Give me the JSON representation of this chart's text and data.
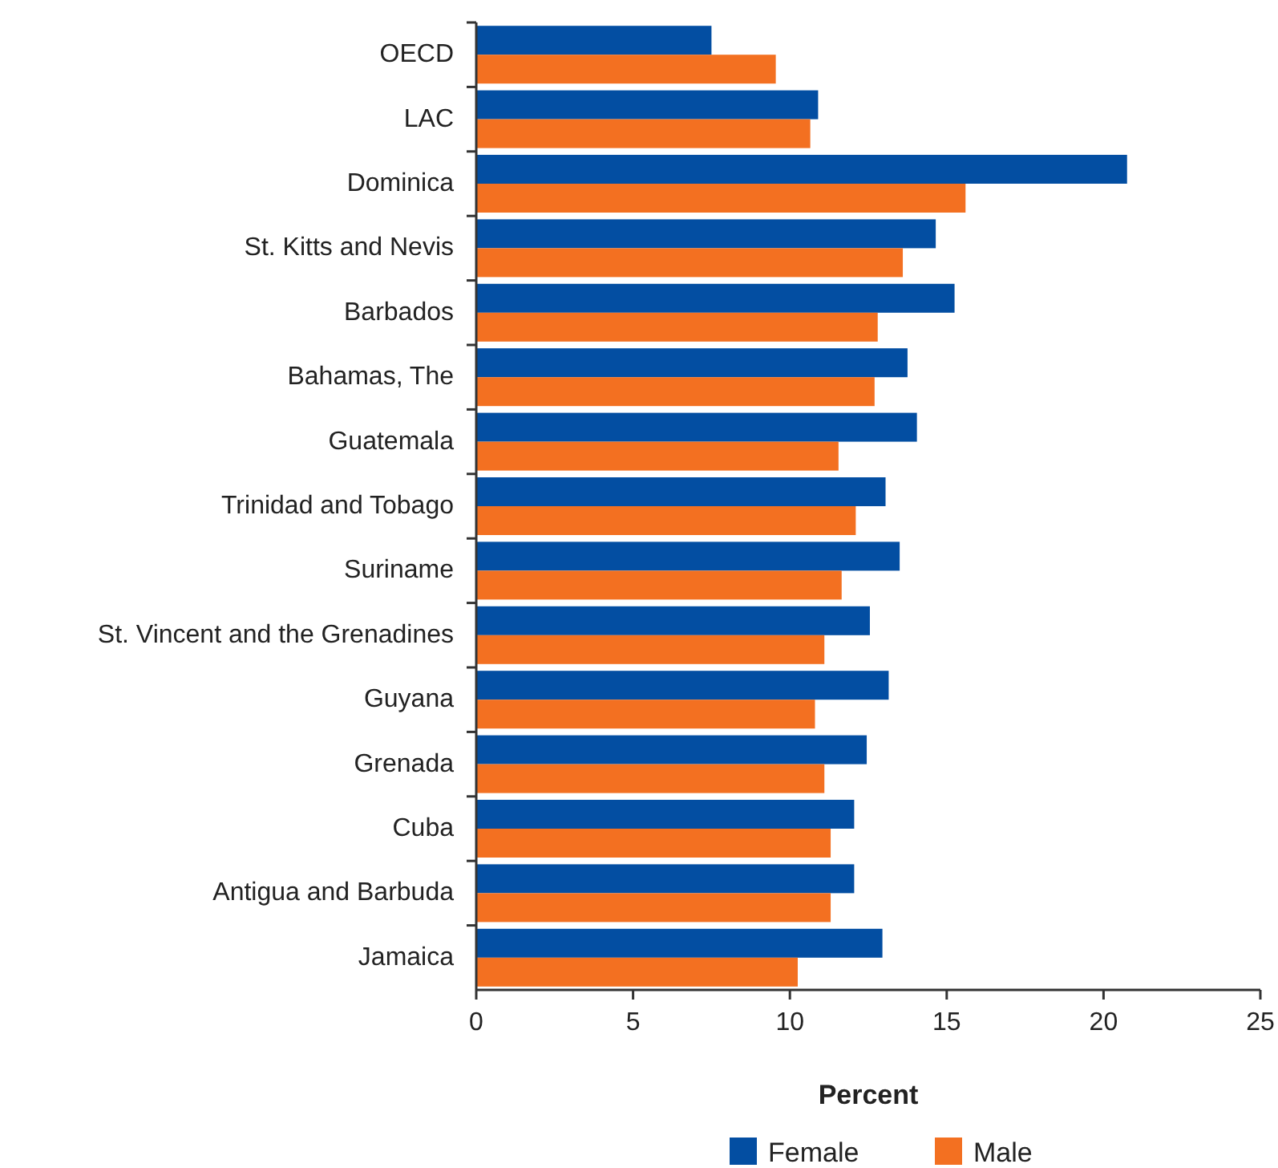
{
  "chart_data": {
    "type": "bar",
    "orientation": "horizontal",
    "xlabel": "Percent",
    "categories": [
      "OECD",
      "LAC",
      "Dominica",
      "St. Kitts and Nevis",
      "Barbados",
      "Bahamas, The",
      "Guatemala",
      "Trinidad and Tobago",
      "Suriname",
      "St. Vincent and the Grenadines",
      "Guyana",
      "Grenada",
      "Cuba",
      "Antigua and Barbuda",
      "Jamaica"
    ],
    "series": [
      {
        "name": "Female",
        "color": "#034ea2",
        "values": [
          7.5,
          10.9,
          20.75,
          14.65,
          15.25,
          13.75,
          14.05,
          13.05,
          13.5,
          12.55,
          13.15,
          12.45,
          12.05,
          12.05,
          12.95
        ]
      },
      {
        "name": "Male",
        "color": "#f37021",
        "values": [
          9.55,
          10.65,
          15.6,
          13.6,
          12.8,
          12.7,
          11.55,
          12.1,
          11.65,
          11.1,
          10.8,
          11.1,
          11.3,
          11.3,
          10.25
        ]
      }
    ],
    "xlim": [
      0,
      25
    ],
    "xticks": [
      0,
      5,
      10,
      15,
      20,
      25
    ],
    "grid": false,
    "legend": "bottom"
  }
}
